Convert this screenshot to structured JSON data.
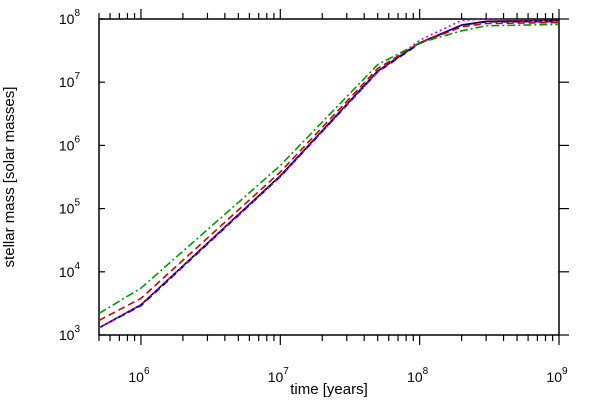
{
  "chart_data": {
    "type": "line",
    "xlabel": "time [years]",
    "ylabel": "stellar mass [solar masses]",
    "xscale": "log",
    "yscale": "log",
    "xlim": [
      500000,
      1000000000
    ],
    "ylim": [
      1000,
      100000000
    ],
    "grid": false,
    "legend": "none",
    "x_ticks": [
      {
        "base": "10",
        "exp": "6",
        "value": 1000000
      },
      {
        "base": "10",
        "exp": "7",
        "value": 10000000
      },
      {
        "base": "10",
        "exp": "8",
        "value": 100000000
      },
      {
        "base": "10",
        "exp": "9",
        "value": 1000000000
      }
    ],
    "y_ticks": [
      {
        "base": "10",
        "exp": "3",
        "value": 1000
      },
      {
        "base": "10",
        "exp": "4",
        "value": 10000
      },
      {
        "base": "10",
        "exp": "5",
        "value": 100000
      },
      {
        "base": "10",
        "exp": "6",
        "value": 1000000
      },
      {
        "base": "10",
        "exp": "7",
        "value": 10000000
      },
      {
        "base": "10",
        "exp": "8",
        "value": 100000000
      }
    ],
    "series": [
      {
        "color": "#000000",
        "style": "solid",
        "x": [
          500000,
          1000000,
          10000000,
          50000000,
          100000000,
          200000000,
          300000000,
          1000000000
        ],
        "y": [
          1300,
          3000,
          330000,
          15000000,
          42000000,
          80000000,
          92000000,
          95000000
        ]
      },
      {
        "color": "#0000cc",
        "style": "dashed",
        "x": [
          500000,
          1000000,
          10000000,
          50000000,
          100000000,
          200000000,
          300000000,
          1000000000
        ],
        "y": [
          1300,
          2900,
          320000,
          14500000,
          41000000,
          80000000,
          90000000,
          91000000
        ]
      },
      {
        "color": "#cc00cc",
        "style": "dotted",
        "x": [
          500000,
          1000000,
          10000000,
          50000000,
          100000000,
          200000000,
          300000000,
          1000000000
        ],
        "y": [
          1300,
          3000,
          320000,
          14500000,
          46000000,
          95000000,
          100000000,
          92000000
        ]
      },
      {
        "color": "#cc0000",
        "style": "dashed",
        "x": [
          500000,
          1000000,
          10000000,
          50000000,
          100000000,
          200000000,
          300000000,
          1000000000
        ],
        "y": [
          1700,
          3800,
          380000,
          16500000,
          42000000,
          75000000,
          85000000,
          88000000
        ]
      },
      {
        "color": "#009900",
        "style": "dashdot",
        "x": [
          500000,
          1000000,
          10000000,
          50000000,
          100000000,
          200000000,
          300000000,
          1000000000
        ],
        "y": [
          2200,
          5500,
          480000,
          19000000,
          42000000,
          65000000,
          78000000,
          82000000
        ]
      }
    ]
  }
}
